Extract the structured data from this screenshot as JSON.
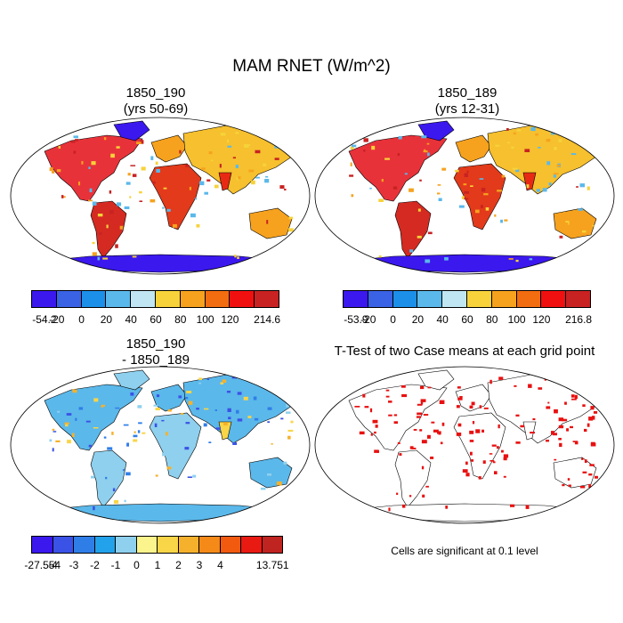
{
  "title": "MAM RNET (W/m^2)",
  "panels": [
    {
      "title_line1": "1850_190",
      "title_line2": "(yrs 50-69)"
    },
    {
      "title_line1": "1850_189",
      "title_line2": "(yrs 12-31)"
    },
    {
      "title_line1": "1850_190",
      "title_line2": "- 1850_189"
    },
    {
      "title_line1": "T-Test of two Case means at each grid point",
      "title_line2": ""
    }
  ],
  "colorbars": [
    {
      "labels": [
        "-54.2",
        "-20",
        "0",
        "20",
        "40",
        "60",
        "80",
        "100",
        "120",
        "214.6"
      ],
      "colors": [
        "#3b18ee",
        "#3a62e4",
        "#1c8fe8",
        "#5bb8ea",
        "#bfe6f2",
        "#f7d23a",
        "#f6a21e",
        "#f26c10",
        "#f01010",
        "#c82222"
      ]
    },
    {
      "labels": [
        "-53.9",
        "-20",
        "0",
        "20",
        "40",
        "60",
        "80",
        "100",
        "120",
        "216.8"
      ],
      "colors": [
        "#3b18ee",
        "#3a62e4",
        "#1c8fe8",
        "#5bb8ea",
        "#bfe6f2",
        "#f7d23a",
        "#f6a21e",
        "#f26c10",
        "#f01010",
        "#c82222"
      ]
    },
    {
      "labels": [
        "-27.554",
        "-4",
        "-3",
        "-2",
        "-1",
        "0",
        "1",
        "2",
        "3",
        "4",
        "13.751"
      ],
      "colors": [
        "#3b18ee",
        "#3a52e6",
        "#2f7ee8",
        "#22a2ea",
        "#8ed0ee",
        "#fbf38c",
        "#f9d548",
        "#f6b12c",
        "#f58a18",
        "#f25a10",
        "#e81a12",
        "#c02420"
      ]
    }
  ],
  "note": "Cells are significant at 0.1 level"
}
